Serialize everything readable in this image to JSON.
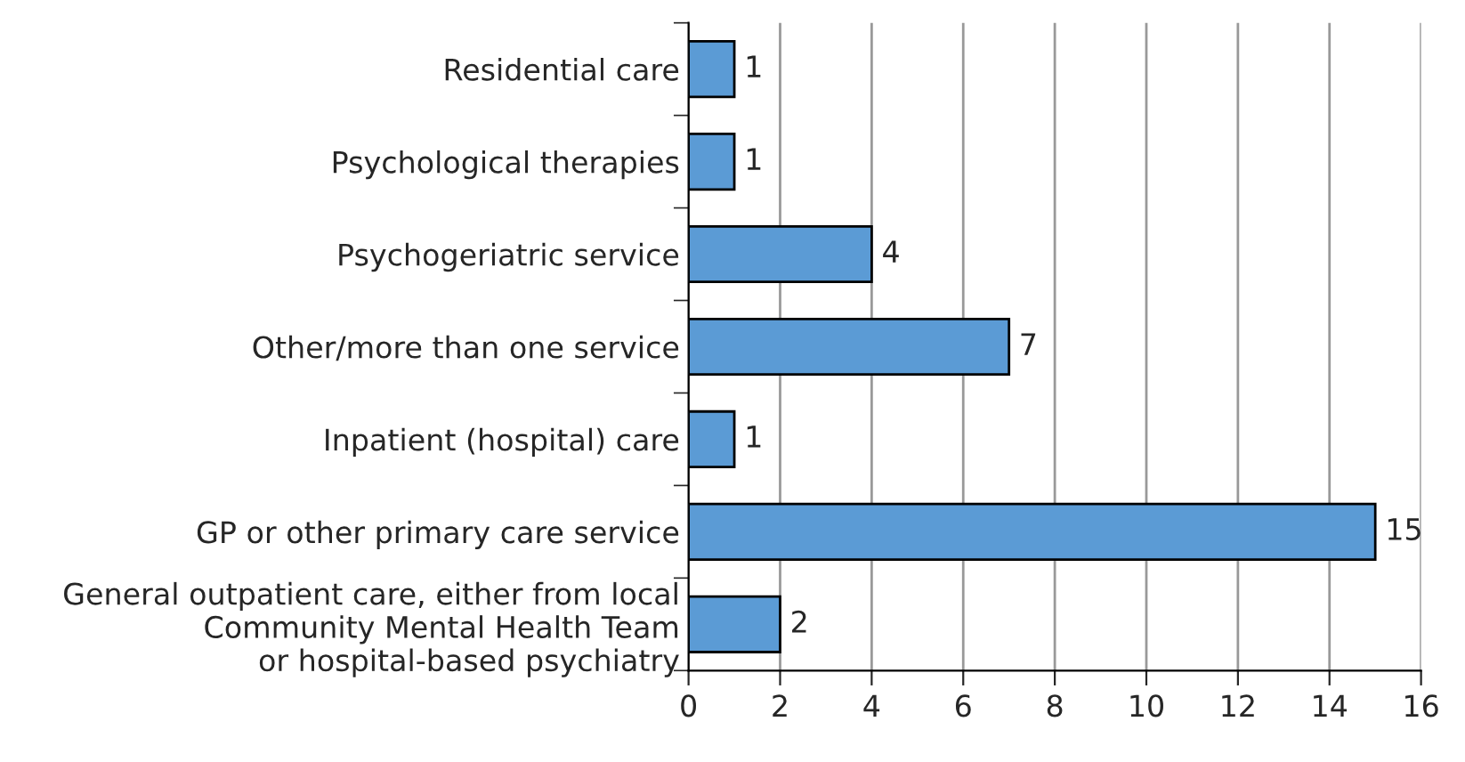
{
  "chart_data": {
    "type": "bar",
    "orientation": "horizontal",
    "categories": [
      "Residential care",
      "Psychological therapies",
      "Psychogeriatric service",
      "Other/more than one service",
      "Inpatient (hospital) care",
      "GP or other primary care service",
      "General outpatient care, either from local\nCommunity Mental Health Team\nor hospital-based psychiatry"
    ],
    "values": [
      1,
      1,
      4,
      7,
      1,
      15,
      2
    ],
    "color": "#5b9bd5",
    "xlim": [
      0,
      16
    ],
    "xticks": [
      0,
      2,
      4,
      6,
      8,
      10,
      12,
      14,
      16
    ],
    "grid": "x",
    "data_labels": true
  }
}
